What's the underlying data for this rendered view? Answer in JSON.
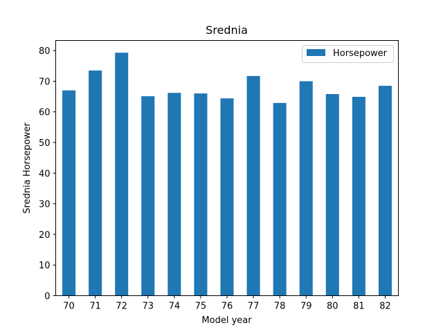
{
  "chart_data": {
    "type": "bar",
    "title": "Srednia",
    "xlabel": "Model year",
    "ylabel": "Srednia Horsepower",
    "categories": [
      "70",
      "71",
      "72",
      "73",
      "74",
      "75",
      "76",
      "77",
      "78",
      "79",
      "80",
      "81",
      "82"
    ],
    "series": [
      {
        "name": "Horsepower",
        "values": [
          67.0,
          73.5,
          79.3,
          65.1,
          66.2,
          66.0,
          64.4,
          71.7,
          62.9,
          70.0,
          65.8,
          64.9,
          68.5
        ],
        "color": "#1f77b4"
      }
    ],
    "ylim": [
      0,
      83.3
    ],
    "yticks": [
      0,
      10,
      20,
      30,
      40,
      50,
      60,
      70,
      80
    ],
    "legend_position": "top-right",
    "grid": false
  }
}
